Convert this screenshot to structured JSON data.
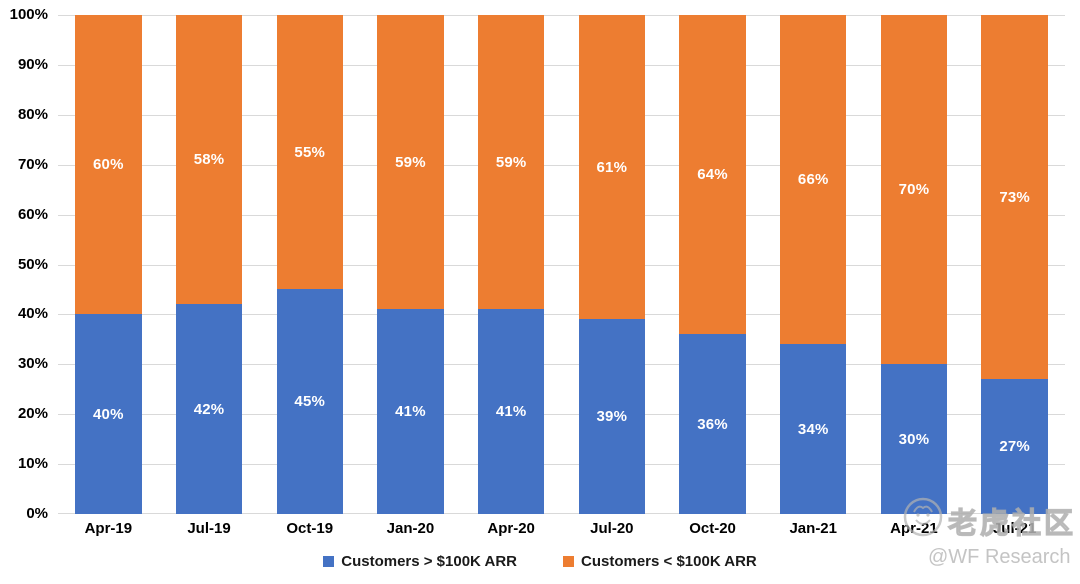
{
  "chart_data": {
    "type": "bar",
    "subtype": "stacked-100",
    "title": "",
    "xlabel": "",
    "ylabel": "",
    "categories": [
      "Apr-19",
      "Jul-19",
      "Oct-19",
      "Jan-20",
      "Apr-20",
      "Jul-20",
      "Oct-20",
      "Jan-21",
      "Apr-21",
      "Jul-21"
    ],
    "series": [
      {
        "name": "Customers > $100K ARR",
        "color": "#4472C4",
        "values": [
          40,
          42,
          45,
          41,
          41,
          39,
          36,
          34,
          30,
          27
        ]
      },
      {
        "name": "Customers < $100K ARR",
        "color": "#ED7D31",
        "values": [
          60,
          58,
          55,
          59,
          59,
          61,
          64,
          66,
          70,
          73
        ]
      }
    ],
    "data_label_suffix": "%",
    "yticks": [
      "0%",
      "10%",
      "20%",
      "30%",
      "40%",
      "50%",
      "60%",
      "70%",
      "80%",
      "90%",
      "100%"
    ],
    "ylim": [
      0,
      100
    ],
    "grid": true,
    "grid_color": "#D9D9D9",
    "data_label_color": "#FFFFFF",
    "legend_position": "bottom"
  },
  "watermark": {
    "logo_icon": "tiger-logo",
    "community_text": "老虎社区",
    "handle_text": "@WF Research",
    "color": "#C4C4C4"
  }
}
